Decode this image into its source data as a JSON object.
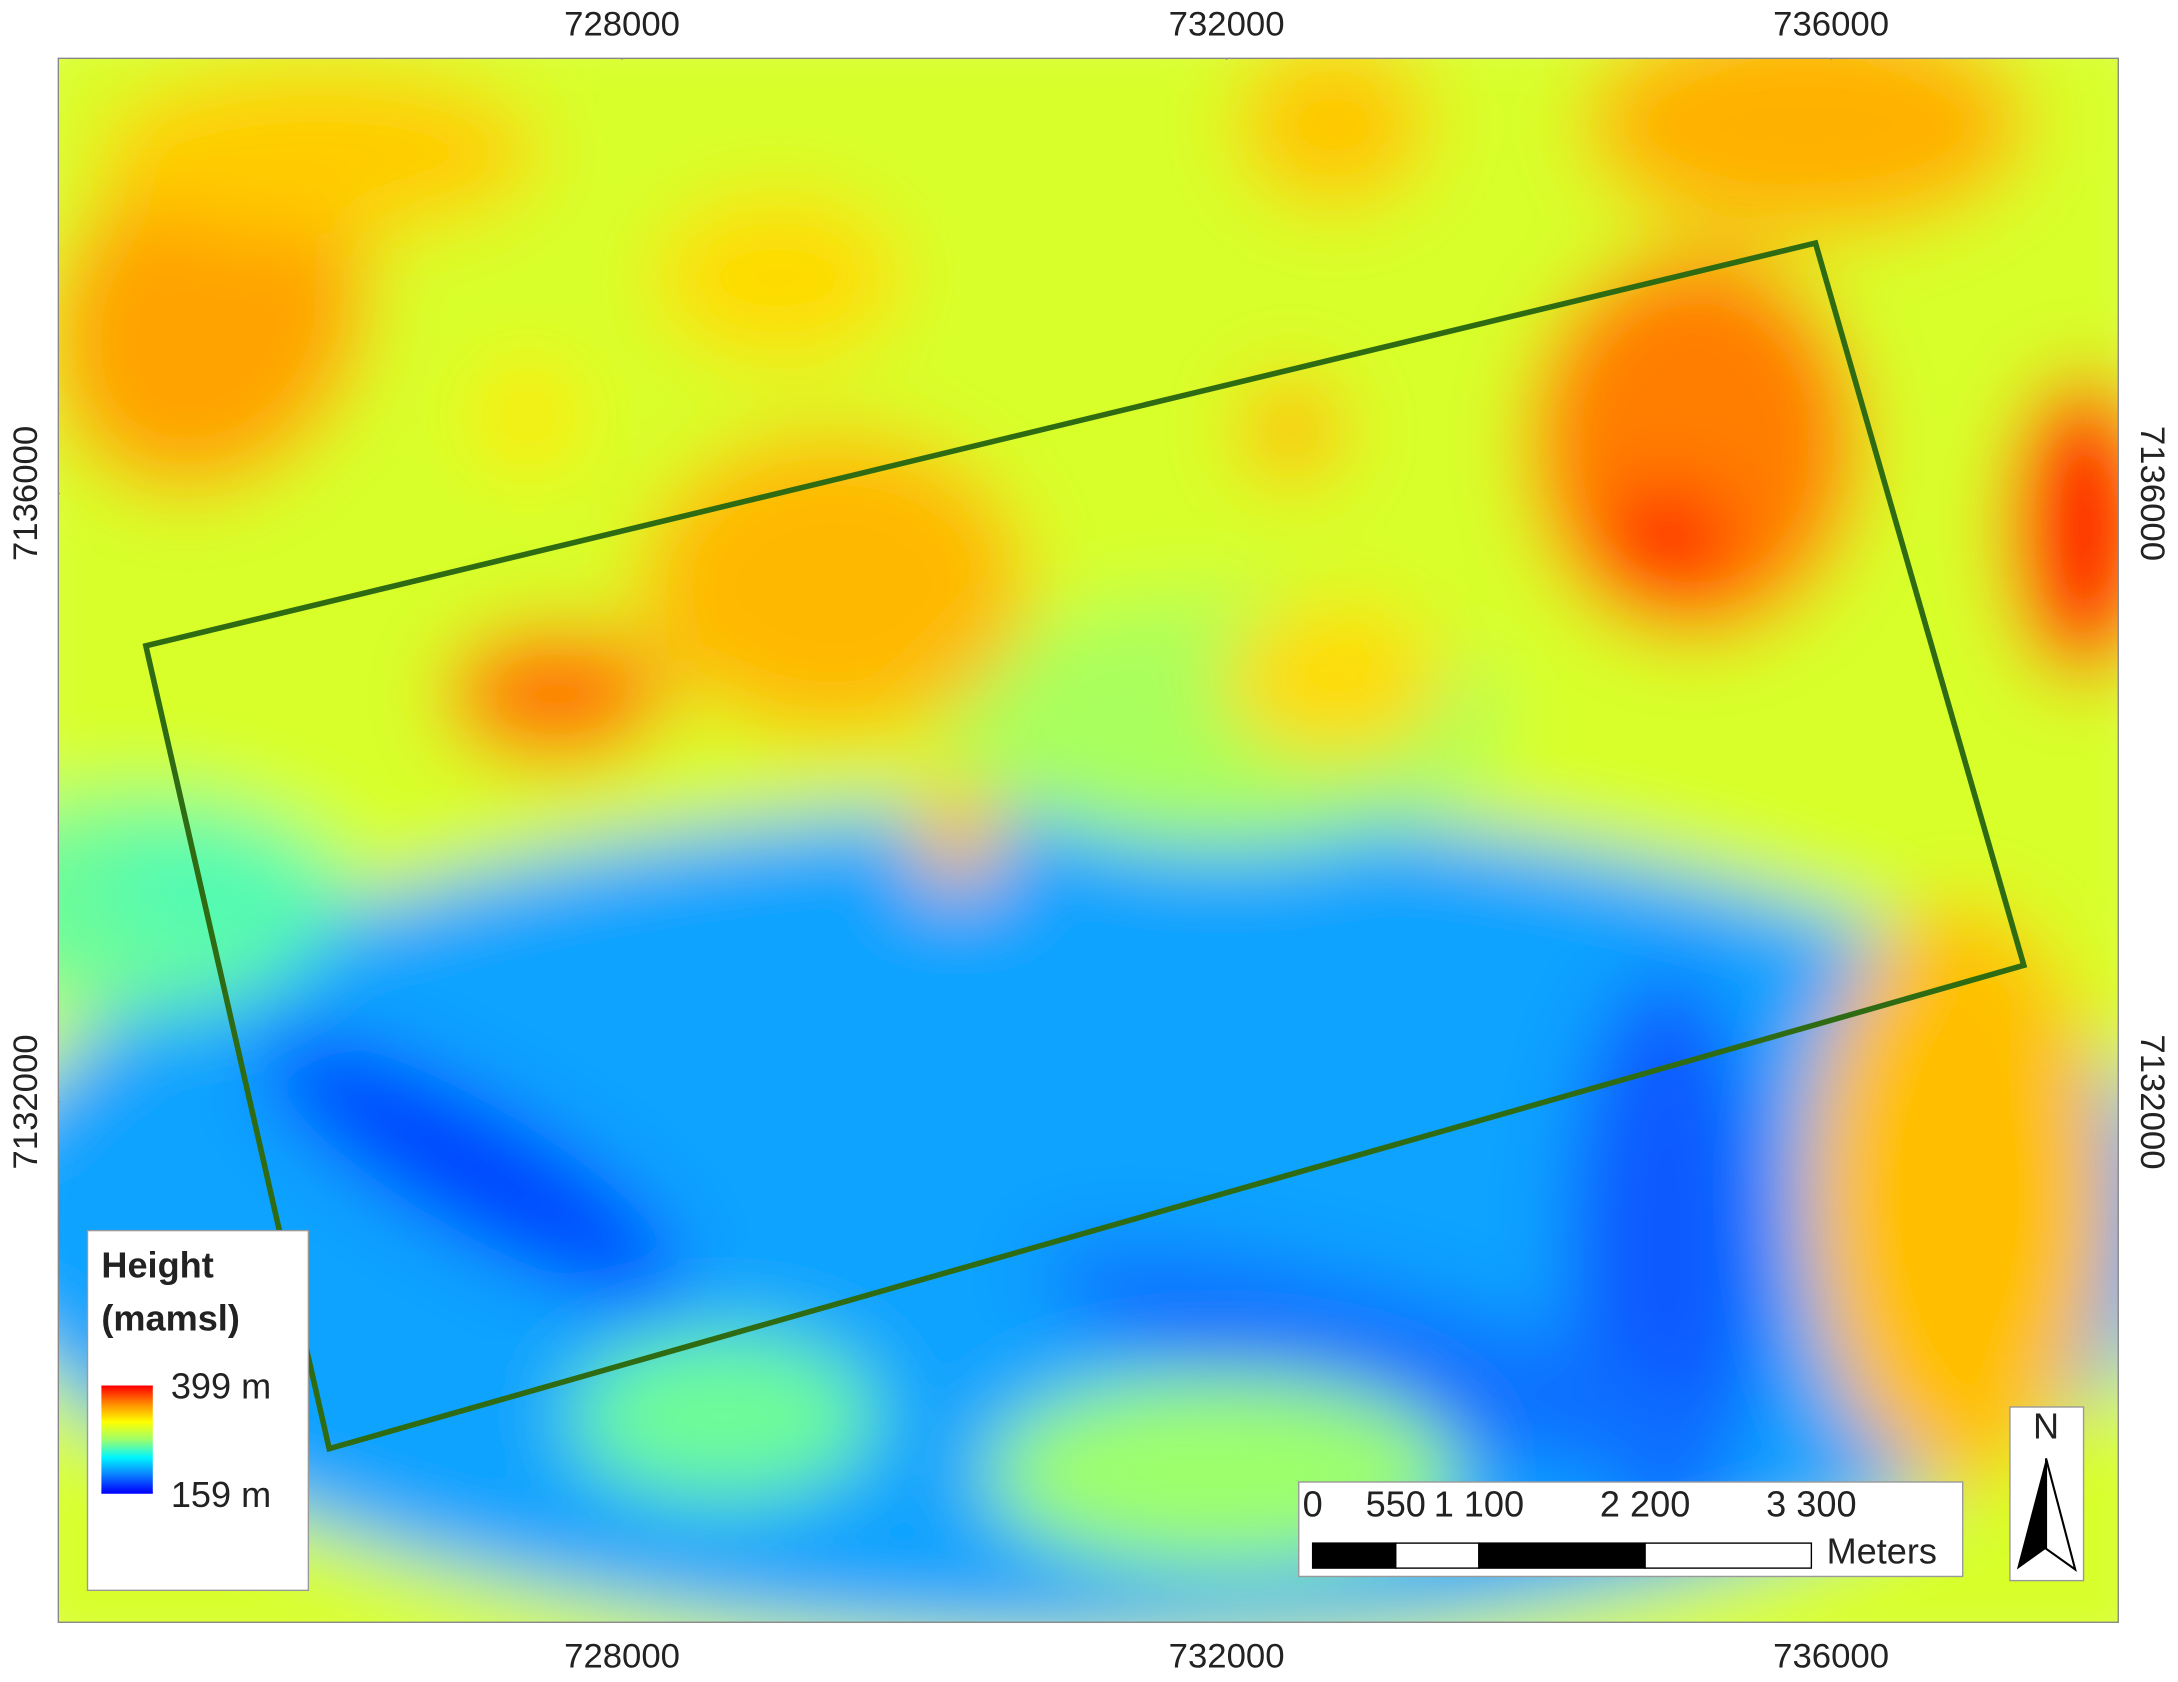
{
  "map": {
    "x_axis": {
      "xlim": [
        724270,
        737900
      ],
      "ticks": [
        728000,
        732000,
        736000
      ]
    },
    "y_axis": {
      "ylim": [
        7128580,
        7138860
      ],
      "ticks": [
        7136000,
        7132000
      ]
    },
    "legend": {
      "title": [
        "Height",
        "(mamsl)"
      ],
      "max": {
        "value": 399,
        "label": "399 m"
      },
      "min": {
        "value": 159,
        "label": "159 m"
      },
      "colors": [
        "#0000ff",
        "#0a7dff",
        "#00f5ff",
        "#9dff6a",
        "#ffff00",
        "#ff8c00",
        "#ff0000"
      ]
    },
    "scale_bar": {
      "ticks": [
        0,
        550,
        {
          "value": 1100,
          "label": "1 100"
        },
        {
          "value": 2200,
          "label": "2 200"
        },
        {
          "value": 3300,
          "label": "3 300"
        }
      ],
      "unit": "Meters"
    },
    "north_arrow": "N"
  }
}
